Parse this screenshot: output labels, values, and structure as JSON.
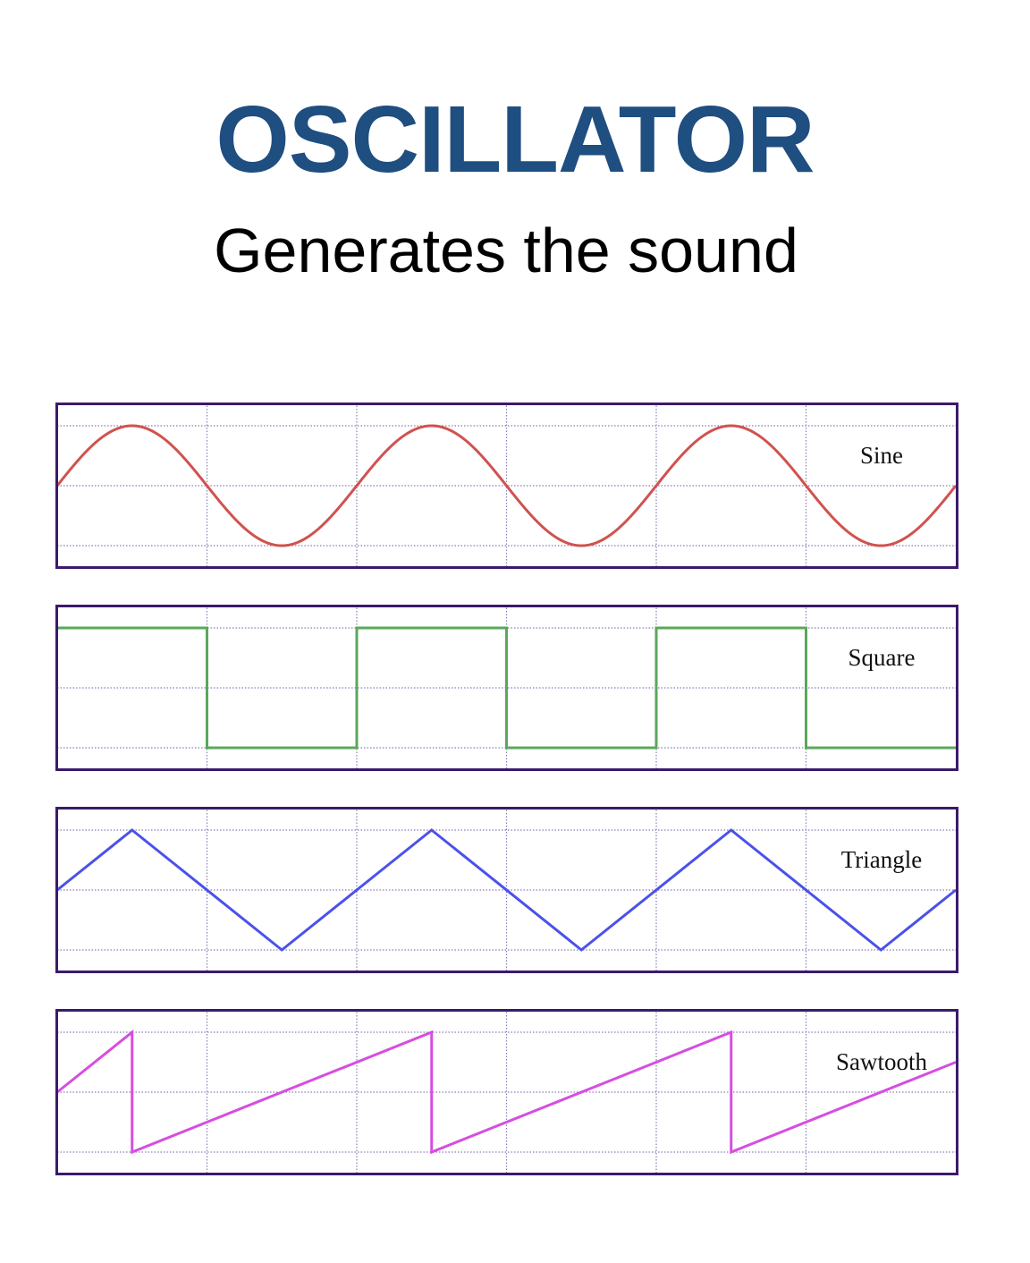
{
  "header": {
    "title": "OSCILLATOR",
    "subtitle": "Generates the sound"
  },
  "colors": {
    "title": "#1f4e80",
    "frame": "#3b1a6b",
    "grid": "#8a7db5",
    "sine": "#d0524f",
    "square": "#5aa85a",
    "triangle": "#4a52e8",
    "sawtooth": "#d64ee0"
  },
  "waveforms": [
    {
      "id": "sine",
      "type": "sine",
      "label": "Sine",
      "color_key": "sine"
    },
    {
      "id": "square",
      "type": "square",
      "label": "Square",
      "color_key": "square"
    },
    {
      "id": "triangle",
      "type": "triangle",
      "label": "Triangle",
      "color_key": "triangle"
    },
    {
      "id": "sawtooth",
      "type": "sawtooth",
      "label": "Sawtooth",
      "color_key": "sawtooth"
    }
  ],
  "cycles_shown": 3
}
